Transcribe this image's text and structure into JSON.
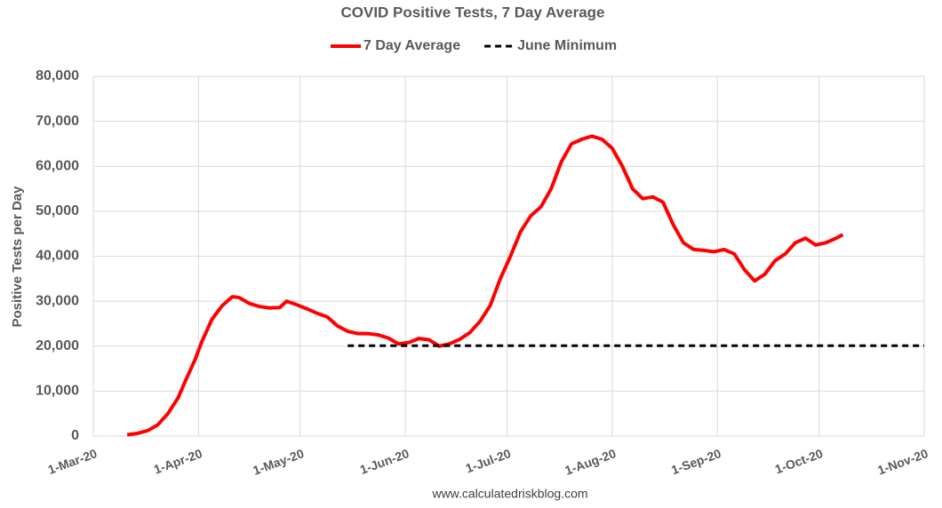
{
  "chart_data": {
    "type": "line",
    "title": "COVID Positive Tests, 7 Day Average",
    "y_label": "Positive Tests per Day",
    "source": "www.calculatedriskblog.com",
    "grid": true,
    "legend": "top",
    "xlim": [
      "1-Mar-20",
      "1-Nov-20"
    ],
    "xticks": [
      "1-Mar-20",
      "1-Apr-20",
      "1-May-20",
      "1-Jun-20",
      "1-Jul-20",
      "1-Aug-20",
      "1-Sep-20",
      "1-Oct-20",
      "1-Nov-20"
    ],
    "ylim": [
      0,
      80000
    ],
    "yticks": [
      0,
      {
        "value": 10000,
        "label": "10,000"
      },
      {
        "value": 20000,
        "label": "20,000"
      },
      {
        "value": 30000,
        "label": "30,000"
      },
      {
        "value": 40000,
        "label": "40,000"
      },
      {
        "value": 50000,
        "label": "50,000"
      },
      {
        "value": 60000,
        "label": "60,000"
      },
      {
        "value": 70000,
        "label": "70,000"
      },
      {
        "value": 80000,
        "label": "80,000"
      }
    ],
    "series": [
      {
        "name": "7 Day Average",
        "color": "#ff0000",
        "dash": false,
        "x": [
          "11-Mar-20",
          "14-Mar-20",
          "17-Mar-20",
          "20-Mar-20",
          "23-Mar-20",
          "26-Mar-20",
          "28-Mar-20",
          "31-Mar-20",
          "2-Apr-20",
          "5-Apr-20",
          "8-Apr-20",
          "11-Apr-20",
          "13-Apr-20",
          "16-Apr-20",
          "19-Apr-20",
          "22-Apr-20",
          "25-Apr-20",
          "27-Apr-20",
          "30-Apr-20",
          "3-May-20",
          "6-May-20",
          "9-May-20",
          "12-May-20",
          "15-May-20",
          "18-May-20",
          "21-May-20",
          "24-May-20",
          "27-May-20",
          "30-May-20",
          "2-Jun-20",
          "5-Jun-20",
          "8-Jun-20",
          "11-Jun-20",
          "14-Jun-20",
          "17-Jun-20",
          "20-Jun-20",
          "23-Jun-20",
          "26-Jun-20",
          "29-Jun-20",
          "2-Jul-20",
          "5-Jul-20",
          "8-Jul-20",
          "11-Jul-20",
          "14-Jul-20",
          "17-Jul-20",
          "20-Jul-20",
          "23-Jul-20",
          "26-Jul-20",
          "29-Jul-20",
          "1-Aug-20",
          "4-Aug-20",
          "7-Aug-20",
          "10-Aug-20",
          "13-Aug-20",
          "16-Aug-20",
          "19-Aug-20",
          "22-Aug-20",
          "25-Aug-20",
          "28-Aug-20",
          "31-Aug-20",
          "3-Sep-20",
          "6-Sep-20",
          "9-Sep-20",
          "12-Sep-20",
          "15-Sep-20",
          "18-Sep-20",
          "21-Sep-20",
          "24-Sep-20",
          "27-Sep-20",
          "30-Sep-20",
          "3-Oct-20",
          "6-Oct-20",
          "8-Oct-20"
        ],
        "values": [
          300,
          600,
          1200,
          2500,
          5000,
          8500,
          12000,
          17000,
          21000,
          26000,
          29000,
          31000,
          30800,
          29500,
          28800,
          28500,
          28600,
          30000,
          29200,
          28300,
          27300,
          26500,
          24500,
          23300,
          22800,
          22800,
          22500,
          21800,
          20500,
          20800,
          21700,
          21400,
          20000,
          20500,
          21500,
          23000,
          25500,
          29000,
          35000,
          40000,
          45500,
          49000,
          51000,
          55000,
          61000,
          65000,
          66000,
          66700,
          66000,
          64000,
          60000,
          55000,
          52800,
          53200,
          52000,
          47000,
          43000,
          41500,
          41300,
          41000,
          41500,
          40500,
          37000,
          34500,
          36000,
          39000,
          40500,
          43000,
          44000,
          42500,
          43000,
          44000,
          44800
        ]
      },
      {
        "name": "June Minimum",
        "color": "#000000",
        "dash": true,
        "x": [
          "15-May-20",
          "1-Nov-20"
        ],
        "values": [
          20100,
          20100
        ]
      }
    ]
  }
}
